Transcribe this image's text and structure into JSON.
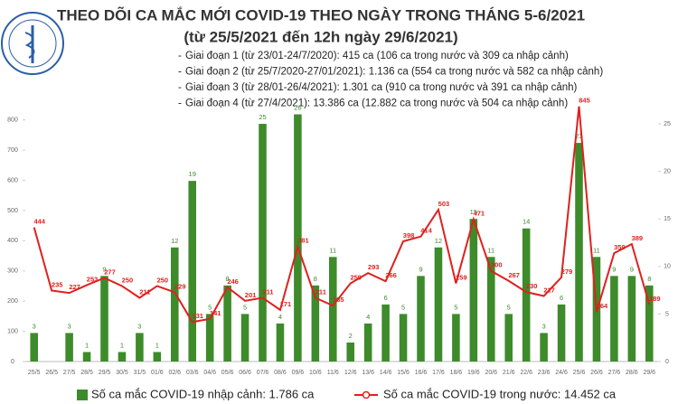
{
  "header": {
    "title": "THEO DÕI CA MẮC MỚI COVID-19 THEO NGÀY TRONG THÁNG 5-6/2021",
    "subtitle": "(từ 25/5/2021 đến 12h ngày 29/6/2021)",
    "notes": [
      "Giai đoạn 1 (từ 23/01-24/7/2020): 415 ca (106 ca trong nước và 309 ca nhập cảnh)",
      "Giai đoạn 2 (từ 25/7/2020-27/01/2021): 1.136 ca (554 ca trong nước và 582 ca nhập cảnh)",
      "Giai đoạn 3 (từ 28/01-26/4/2021): 1.301 ca (910 ca trong nước và 391 ca nhập cảnh)",
      "Giai đoạn 4 (từ 27/4/2021): 13.386 ca (12.882 ca trong nước và 504 ca nhập cảnh)"
    ]
  },
  "chart_data": {
    "type": "combo",
    "categories": [
      "25/5",
      "26/5",
      "27/5",
      "28/5",
      "29/5",
      "30/5",
      "31/5",
      "01/6",
      "02/6",
      "03/6",
      "04/6",
      "05/6",
      "06/6",
      "07/6",
      "08/6",
      "09/6",
      "10/6",
      "11/6",
      "12/6",
      "13/6",
      "14/6",
      "15/6",
      "16/6",
      "17/6",
      "18/6",
      "19/6",
      "20/6",
      "21/6",
      "22/6",
      "23/6",
      "24/6",
      "25/6",
      "26/6",
      "27/6",
      "28/6",
      "29/6"
    ],
    "series": [
      {
        "name": "Số ca mắc COVID-19 nhập cảnh: 1.786 ca",
        "type": "bar",
        "axis": "y2",
        "color": "#3d8b2a",
        "values": [
          3,
          null,
          3,
          1,
          9,
          1,
          3,
          1,
          12,
          19,
          5,
          8,
          5,
          25,
          4,
          26,
          8,
          11,
          2,
          4,
          6,
          5,
          9,
          12,
          5,
          15,
          11,
          5,
          14,
          3,
          6,
          23,
          11,
          9,
          9,
          8
        ]
      },
      {
        "name": "Số ca mắc COVID-19 trong nước: 14.452 ca",
        "type": "line",
        "axis": "y",
        "color": "#e0201e",
        "values": [
          444,
          235,
          227,
          253,
          277,
          250,
          211,
          250,
          229,
          131,
          141,
          246,
          201,
          211,
          171,
          381,
          211,
          185,
          259,
          293,
          266,
          398,
          414,
          503,
          259,
          471,
          300,
          267,
          230,
          217,
          279,
          845,
          164,
          359,
          389,
          189
        ]
      }
    ],
    "ylim": [
      0,
      850
    ],
    "yticks": [
      0,
      100,
      200,
      300,
      400,
      500,
      600,
      700,
      800
    ],
    "y2lim": [
      0,
      27
    ],
    "y2ticks": [
      0,
      5,
      10,
      15,
      20,
      25
    ]
  }
}
